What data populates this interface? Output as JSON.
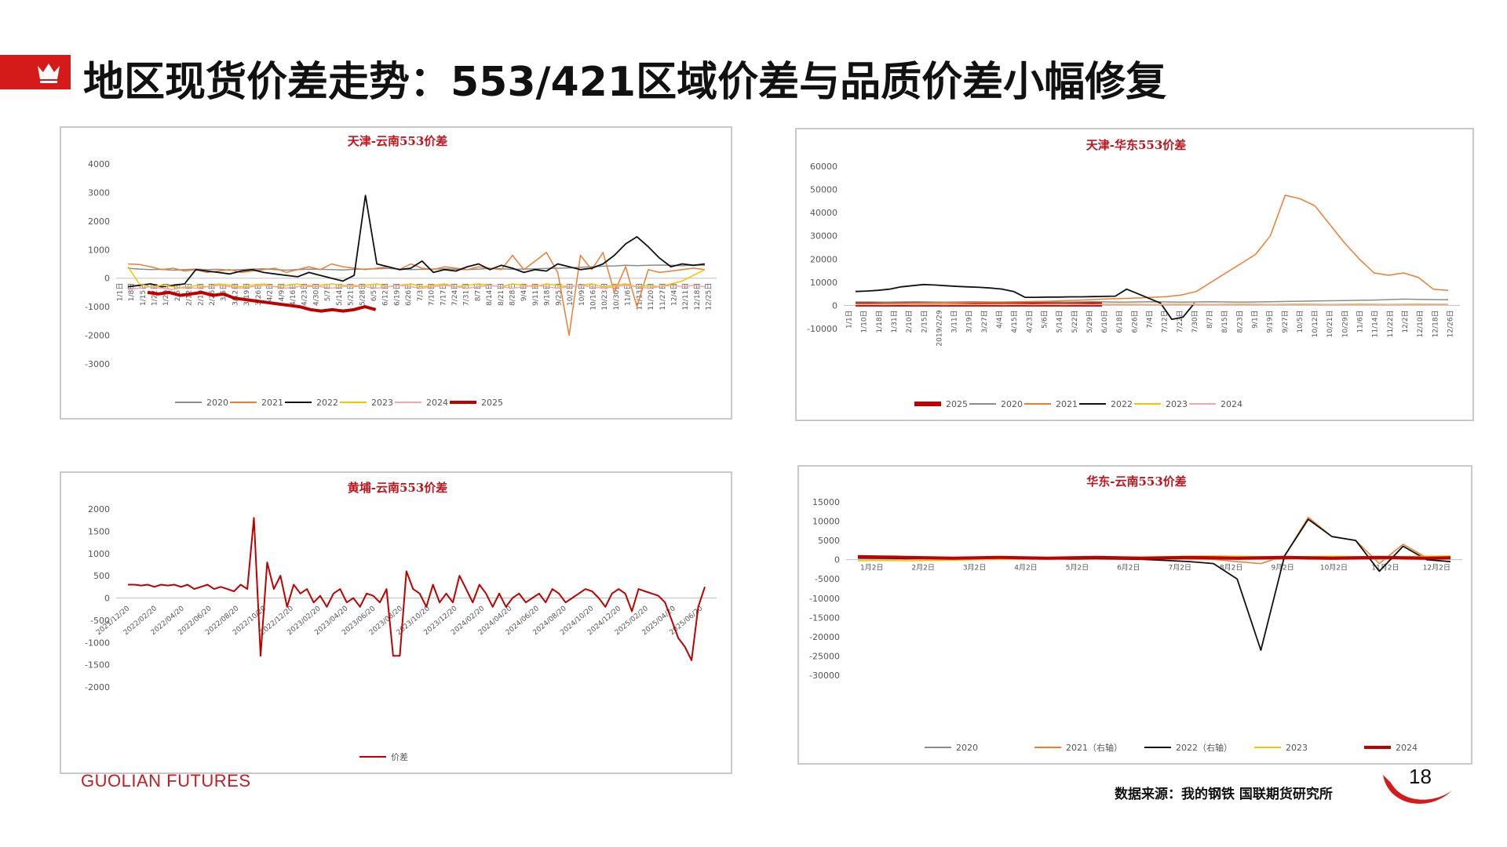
{
  "header": {
    "title": "地区现货价差走势：553/421区域价差与品质价差小幅修复",
    "icon": "crown-icon",
    "accent": "#d51a1a"
  },
  "footer": {
    "logo": "GUOLIAN FUTURES",
    "source": "数据来源：我的钢铁  国联期货研究所",
    "page": "18"
  },
  "chart_data": [
    {
      "id": "tianjin-yunnan",
      "type": "line",
      "title": "天津-云南553价差",
      "ylim": [
        -3000,
        4000
      ],
      "yticks": [
        "4000",
        "3000",
        "2000",
        "1000",
        "0",
        "-1000",
        "-2000",
        "-3000"
      ],
      "xticks": [
        "1/1日",
        "1/8日",
        "1/15日",
        "1/22日",
        "1/29日",
        "2/5日",
        "2/12日",
        "2/19日",
        "2/26日",
        "3/5日",
        "3/12日",
        "3/19日",
        "3/26日",
        "4/2日",
        "4/9日",
        "4/16日",
        "4/23日",
        "4/30日",
        "5/7日",
        "5/14日",
        "5/21日",
        "5/28日",
        "6/5日",
        "6/12日",
        "6/19日",
        "6/26日",
        "7/3日",
        "7/10日",
        "7/17日",
        "7/24日",
        "7/31日",
        "8/7日",
        "8/14日",
        "8/21日",
        "8/28日",
        "9/4日",
        "9/11日",
        "9/18日",
        "9/25日",
        "10/2日",
        "10/9日",
        "10/16日",
        "10/23日",
        "10/30日",
        "11/6日",
        "11/13日",
        "11/20日",
        "11/27日",
        "12/4日",
        "12/11日",
        "12/18日",
        "12/25日"
      ],
      "series": [
        {
          "name": "2020",
          "color": "#8c8c8c",
          "width": 1.5,
          "values": [
            350,
            320,
            300,
            310,
            280,
            300,
            320,
            300,
            310,
            280,
            300,
            320,
            330,
            300,
            280,
            300,
            320,
            310,
            300,
            290,
            310,
            320,
            330,
            340,
            320,
            300,
            310,
            320,
            330,
            310,
            300,
            320,
            340,
            330,
            310,
            320,
            330,
            340,
            350,
            360,
            380,
            400,
            420,
            430,
            450,
            440,
            450,
            460,
            450,
            440,
            460,
            450
          ]
        },
        {
          "name": "2021",
          "color": "#ed7d31",
          "width": 1.5,
          "values": [
            500,
            480,
            400,
            300,
            350,
            250,
            300,
            200,
            250,
            300,
            200,
            250,
            300,
            350,
            200,
            300,
            400,
            300,
            500,
            400,
            350,
            300,
            350,
            400,
            300,
            500,
            350,
            300,
            400,
            350,
            300,
            400,
            350,
            300,
            800,
            300,
            600,
            900,
            200,
            -2000,
            800,
            300,
            900,
            -500,
            400,
            -1000,
            300,
            200,
            250,
            300,
            350,
            300
          ]
        },
        {
          "name": "2022",
          "color": "#111111",
          "width": 1.8,
          "values": [
            -300,
            -250,
            -200,
            -300,
            -250,
            -200,
            300,
            250,
            200,
            150,
            250,
            300,
            200,
            150,
            100,
            50,
            200,
            100,
            0,
            -100,
            100,
            2900,
            500,
            400,
            300,
            350,
            600,
            200,
            300,
            250,
            400,
            500,
            300,
            450,
            350,
            200,
            300,
            250,
            500,
            400,
            300,
            350,
            500,
            800,
            1200,
            1450,
            1100,
            700,
            400,
            500,
            450,
            500
          ]
        },
        {
          "name": "2023",
          "color": "#f2c400",
          "width": 1.5,
          "values": [
            400,
            -200,
            -300,
            -250,
            -300,
            -350,
            -250,
            -300,
            -200,
            -250,
            -300,
            -250,
            -200,
            -300,
            -250,
            -200,
            -300,
            -250,
            -200,
            -250,
            -300,
            -250,
            -200,
            -300,
            -250,
            -200,
            -300,
            -250,
            -200,
            -300,
            -250,
            -200,
            -250,
            -300,
            -200,
            -250,
            -300,
            -200,
            -250,
            -300,
            -250,
            -200,
            -300,
            -250,
            -200,
            -300,
            -250,
            -300,
            -200,
            -100,
            100,
            300
          ]
        },
        {
          "name": "2024",
          "color": "#f4a7a7",
          "width": 1.5,
          "values": [
            -400,
            -350,
            -300,
            -350,
            -400,
            -300,
            -350,
            -300,
            -250,
            -300,
            -350,
            -300,
            -250,
            -300,
            -350,
            -300,
            -250,
            -300,
            -350,
            -300,
            -250,
            -300,
            -350,
            -300,
            -250,
            -300,
            -350,
            -300,
            -250,
            -300,
            -350,
            -300,
            -250,
            -300,
            -350,
            -300,
            -250,
            -300,
            -350,
            -300,
            -250,
            -300,
            -350,
            -300,
            -250,
            -300,
            -350,
            -300,
            -250,
            -300,
            -250,
            -300
          ]
        },
        {
          "name": "2025",
          "color": "#c00000",
          "width": 4,
          "values": [
            -500,
            -550,
            -500,
            -600,
            -550,
            -500,
            -600,
            -550,
            -700,
            -750,
            -800,
            -850,
            -900,
            -950,
            -1000,
            -1100,
            -1150,
            -1100,
            -1150,
            -1100,
            -1000,
            -1100
          ]
        }
      ]
    },
    {
      "id": "tianjin-huadong",
      "type": "line",
      "title": "天津-华东553价差",
      "ylim": [
        -10000,
        60000
      ],
      "yticks": [
        "60000",
        "50000",
        "40000",
        "30000",
        "20000",
        "10000",
        "0",
        "-10000"
      ],
      "xticks": [
        "1/1日",
        "1/10日",
        "1/18日",
        "1/31日",
        "2/10日",
        "2/15日",
        "2019/2/29",
        "3/11日",
        "3/19日",
        "3/27日",
        "4/4日",
        "4/15日",
        "4/23日",
        "5/6日",
        "5/14日",
        "5/22日",
        "5/29日",
        "6/10日",
        "6/18日",
        "6/26日",
        "7/4日",
        "7/12日",
        "7/22日",
        "7/30日",
        "8/7日",
        "8/15日",
        "8/23日",
        "9/1日",
        "9/19日",
        "9/27日",
        "10/5日",
        "10/12日",
        "10/21日",
        "10/29日",
        "11/6日",
        "11/14日",
        "11/22日",
        "12/2日",
        "12/10日",
        "12/18日",
        "12/26日"
      ],
      "series": [
        {
          "name": "2025",
          "color": "#c00000",
          "width": 6,
          "values": [
            500,
            500,
            500,
            500,
            500,
            500,
            500,
            500,
            500,
            500,
            500,
            500,
            500,
            500,
            500,
            500,
            500,
            500,
            500,
            500,
            500,
            500
          ]
        },
        {
          "name": "2020",
          "color": "#8c8c8c",
          "width": 1.5,
          "values": [
            1500,
            1500,
            1400,
            1500,
            1600,
            1500,
            1400,
            1500,
            1600,
            1500,
            1400,
            1500,
            1600,
            1500,
            1400,
            1500,
            1600,
            1500,
            1400,
            1500,
            1600,
            1500,
            1400,
            1500,
            1600,
            1500,
            1400,
            1500,
            1600,
            1700,
            1800,
            1900,
            2000,
            2100,
            2200,
            2300,
            2500,
            2700,
            2600,
            2500,
            2400
          ]
        },
        {
          "name": "2021",
          "color": "#ed7d31",
          "width": 1.5,
          "values": [
            500,
            600,
            700,
            800,
            900,
            1000,
            1100,
            1200,
            1300,
            1400,
            1500,
            1600,
            1700,
            1800,
            2000,
            2200,
            2500,
            2800,
            3000,
            3200,
            3500,
            3800,
            4500,
            6000,
            10000,
            14000,
            18000,
            22000,
            30000,
            47500,
            46000,
            43000,
            35000,
            27000,
            20000,
            14000,
            13000,
            14000,
            12000,
            7000,
            6500
          ]
        },
        {
          "name": "2022",
          "color": "#111111",
          "width": 1.8,
          "values": [
            6000,
            6200,
            6500,
            7000,
            8000,
            8500,
            9000,
            8800,
            8500,
            8200,
            8000,
            7800,
            7500,
            7000,
            6000,
            3500,
            3500,
            3600,
            3600,
            3700,
            3700,
            3800,
            3900,
            4000,
            7000,
            5000,
            3000,
            1000,
            -6000,
            -5000,
            1000
          ]
        },
        {
          "name": "2023",
          "color": "#f2c400",
          "width": 1.5,
          "values": [
            500,
            500,
            600,
            500,
            400,
            500,
            600,
            500,
            400,
            500,
            600,
            500,
            400,
            500,
            600,
            500,
            400,
            500,
            600,
            500,
            400,
            500,
            600,
            500,
            400,
            500,
            600,
            500,
            400,
            500,
            600,
            500,
            400,
            500,
            600,
            500,
            400,
            500,
            600,
            500,
            500
          ]
        },
        {
          "name": "2024",
          "color": "#f4a7a7",
          "width": 1.5,
          "values": [
            300,
            400,
            300,
            400,
            300,
            400,
            300,
            400,
            300,
            400,
            300,
            400,
            300,
            400,
            300,
            400,
            300,
            400,
            300,
            400,
            300,
            400,
            300,
            400,
            300,
            400,
            300,
            400,
            300,
            400,
            300,
            400,
            300,
            400,
            300,
            400,
            300,
            400,
            300,
            400,
            300
          ]
        }
      ]
    },
    {
      "id": "huangpu-yunnan",
      "type": "line",
      "title": "黄埔-云南553价差",
      "ylim": [
        -2000,
        2000
      ],
      "yticks": [
        "2000",
        "1500",
        "1000",
        "500",
        "0",
        "-500",
        "-1000",
        "-1500",
        "-2000"
      ],
      "xticks": [
        "2021/12/20",
        "2022/02/20",
        "2022/04/20",
        "2022/06/20",
        "2022/08/20",
        "2022/10/20",
        "2022/12/20",
        "2023/02/20",
        "2023/04/20",
        "2023/06/20",
        "2023/08/20",
        "2023/10/20",
        "2023/12/20",
        "2024/02/20",
        "2024/04/20",
        "2024/06/20",
        "2024/08/20",
        "2024/10/20",
        "2024/12/20",
        "2025/02/20",
        "2025/04/20",
        "2025/06/20"
      ],
      "series": [
        {
          "name": "价差",
          "color": "#c00000",
          "width": 2,
          "values": [
            300,
            300,
            280,
            300,
            250,
            300,
            280,
            300,
            250,
            300,
            200,
            250,
            300,
            200,
            250,
            200,
            150,
            300,
            200,
            1800,
            -1300,
            800,
            200,
            500,
            -200,
            300,
            100,
            200,
            -100,
            50,
            -200,
            100,
            200,
            -100,
            0,
            -200,
            100,
            50,
            -100,
            200,
            -1300,
            -1300,
            600,
            200,
            100,
            -200,
            300,
            -100,
            100,
            -100,
            500,
            200,
            -100,
            300,
            100,
            -200,
            100,
            -200,
            0,
            100,
            -100,
            0,
            100,
            -100,
            200,
            100,
            -100,
            0,
            100,
            200,
            150,
            0,
            -200,
            100,
            200,
            100,
            -300,
            200,
            150,
            100,
            50,
            -100,
            -500,
            -900,
            -1100,
            -1400,
            -200,
            250
          ]
        }
      ]
    },
    {
      "id": "huadong-yunnan",
      "type": "line",
      "title": "华东-云南553价差",
      "ylim": [
        -30000,
        15000
      ],
      "yticks": [
        "15000",
        "10000",
        "5000",
        "0",
        "-5000",
        "-10000",
        "-15000",
        "-20000",
        "-25000",
        "-30000"
      ],
      "xticks": [
        "1月2日",
        "2月2日",
        "3月2日",
        "4月2日",
        "5月2日",
        "6月2日",
        "7月2日",
        "8月2日",
        "9月2日",
        "10月2日",
        "11月2日",
        "12月2日"
      ],
      "series": [
        {
          "name": "2020",
          "color": "#8c8c8c",
          "width": 1.5,
          "values": [
            300,
            300,
            200,
            300,
            200,
            300,
            200,
            300,
            200,
            300,
            200,
            300,
            200,
            300,
            200,
            300,
            200,
            300,
            200,
            300,
            200,
            300,
            200,
            300
          ]
        },
        {
          "name": "2021（右轴）",
          "color": "#ed7d31",
          "width": 1.5,
          "values": [
            600,
            500,
            400,
            500,
            400,
            300,
            400,
            500,
            400,
            300,
            400,
            300,
            200,
            300,
            200,
            100,
            -500,
            -1000,
            1000,
            11000,
            6000,
            5000,
            -1000,
            4000,
            500,
            200
          ]
        },
        {
          "name": "2022（右轴）",
          "color": "#111111",
          "width": 1.8,
          "values": [
            500,
            400,
            300,
            400,
            300,
            200,
            300,
            400,
            300,
            200,
            300,
            200,
            100,
            -200,
            -500,
            -1000,
            -5000,
            -23500,
            1000,
            10500,
            6000,
            5000,
            -3000,
            3500,
            0,
            -500
          ]
        },
        {
          "name": "2023",
          "color": "#f2c400",
          "width": 1.5,
          "values": [
            -300,
            -200,
            -300,
            -200,
            -100,
            0,
            100,
            200,
            300,
            400,
            500,
            600,
            700,
            800,
            900,
            1000,
            900,
            800,
            700,
            800,
            900,
            800,
            700,
            800,
            900,
            1000
          ]
        },
        {
          "name": "2024",
          "color": "#c00000",
          "width": 4,
          "values": [
            800,
            700,
            600,
            500,
            400,
            500,
            600,
            500,
            400,
            500,
            600,
            500,
            400,
            500,
            600,
            500,
            400,
            500,
            600,
            500,
            400,
            500,
            600,
            500,
            400,
            500
          ]
        }
      ]
    }
  ]
}
